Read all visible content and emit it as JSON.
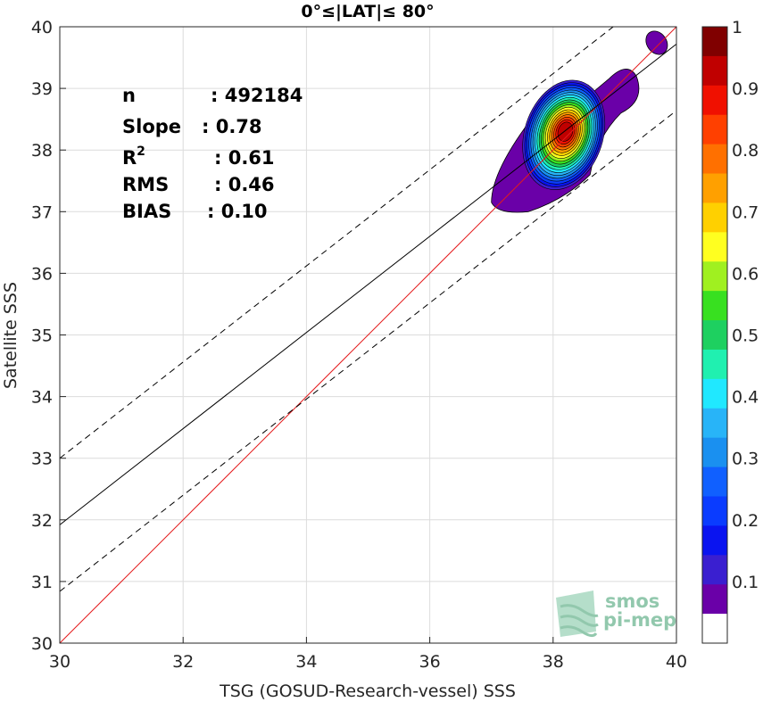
{
  "chart_data": {
    "type": "heatmap",
    "title": "0°≤|LAT|≤ 80°",
    "xlabel": "TSG (GOSUD-Research-vessel) SSS",
    "ylabel": "Satellite SSS",
    "xlim": [
      30,
      40
    ],
    "ylim": [
      30,
      40
    ],
    "xticks": [
      "30",
      "32",
      "34",
      "36",
      "38",
      "40"
    ],
    "yticks": [
      "30",
      "31",
      "32",
      "33",
      "34",
      "35",
      "36",
      "37",
      "38",
      "39",
      "40"
    ],
    "grid": true,
    "stats": [
      {
        "label": "n",
        "value": ": 492184"
      },
      {
        "label": "Slope",
        "value": ": 0.78"
      },
      {
        "label": "R",
        "sup": "2",
        "value": ": 0.61"
      },
      {
        "label": "RMS",
        "value": ": 0.46"
      },
      {
        "label": "BIAS",
        "value": ": 0.10"
      }
    ],
    "lines": [
      {
        "name": "identity",
        "color": "#e41a1c",
        "style": "solid",
        "points": [
          [
            30,
            30
          ],
          [
            40,
            40
          ]
        ]
      },
      {
        "name": "regression",
        "color": "#000000",
        "style": "solid",
        "points": [
          [
            30,
            31.92
          ],
          [
            40,
            39.72
          ]
        ]
      },
      {
        "name": "upper-bound",
        "color": "#000000",
        "style": "dashed",
        "points": [
          [
            30,
            33.0
          ],
          [
            40,
            40.8
          ]
        ]
      },
      {
        "name": "lower-bound",
        "color": "#000000",
        "style": "dashed",
        "points": [
          [
            30,
            30.84
          ],
          [
            40,
            38.64
          ]
        ]
      }
    ],
    "density_peak": {
      "x": 38.2,
      "y": 38.3,
      "max": 1.0
    },
    "contour_levels": [
      0.05,
      0.1,
      0.15,
      0.2,
      0.25,
      0.3,
      0.35,
      0.4,
      0.45,
      0.5,
      0.55,
      0.6,
      0.65,
      0.7,
      0.75,
      0.8,
      0.85,
      0.9,
      0.95
    ],
    "colorbar": {
      "min": 0,
      "max": 1,
      "ticks": [
        "0.1",
        "0.2",
        "0.3",
        "0.4",
        "0.5",
        "0.6",
        "0.7",
        "0.8",
        "0.9",
        "1"
      ],
      "colors": [
        "#ffffff",
        "#6a00a8",
        "#3a1fd0",
        "#0a14f0",
        "#0a3cff",
        "#1060ff",
        "#1a90f0",
        "#28b4f8",
        "#20e8ff",
        "#20f0b0",
        "#1ed060",
        "#38e020",
        "#a0f020",
        "#ffff20",
        "#ffd000",
        "#ffa000",
        "#ff7000",
        "#ff4000",
        "#f01000",
        "#c00000",
        "#800000"
      ]
    },
    "watermark": [
      "smos",
      "pi-mep"
    ]
  }
}
